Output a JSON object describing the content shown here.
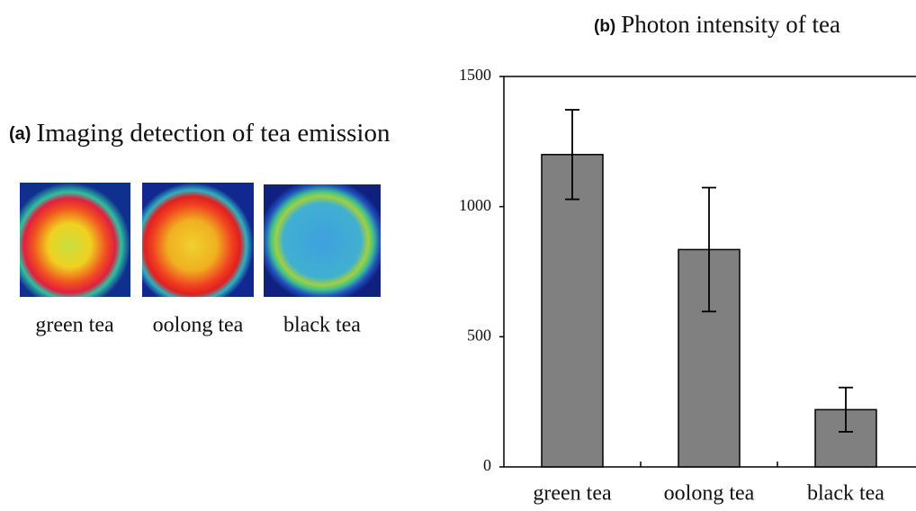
{
  "panel_a": {
    "label": "(a)",
    "title": "Imaging detection of  tea emission",
    "images": [
      {
        "label": "green tea"
      },
      {
        "label": "oolong tea"
      },
      {
        "label": "black tea"
      }
    ]
  },
  "chart_data": {
    "type": "bar",
    "panel_label": "(b)",
    "title": "Photon intensity of tea",
    "categories": [
      "green tea",
      "oolong tea",
      "black tea"
    ],
    "values": [
      1200,
      835,
      220
    ],
    "errors": [
      172,
      238,
      85
    ],
    "color": "#808080",
    "ylim": [
      0,
      1500
    ],
    "yticks": [
      0,
      500,
      1000,
      1500
    ]
  }
}
